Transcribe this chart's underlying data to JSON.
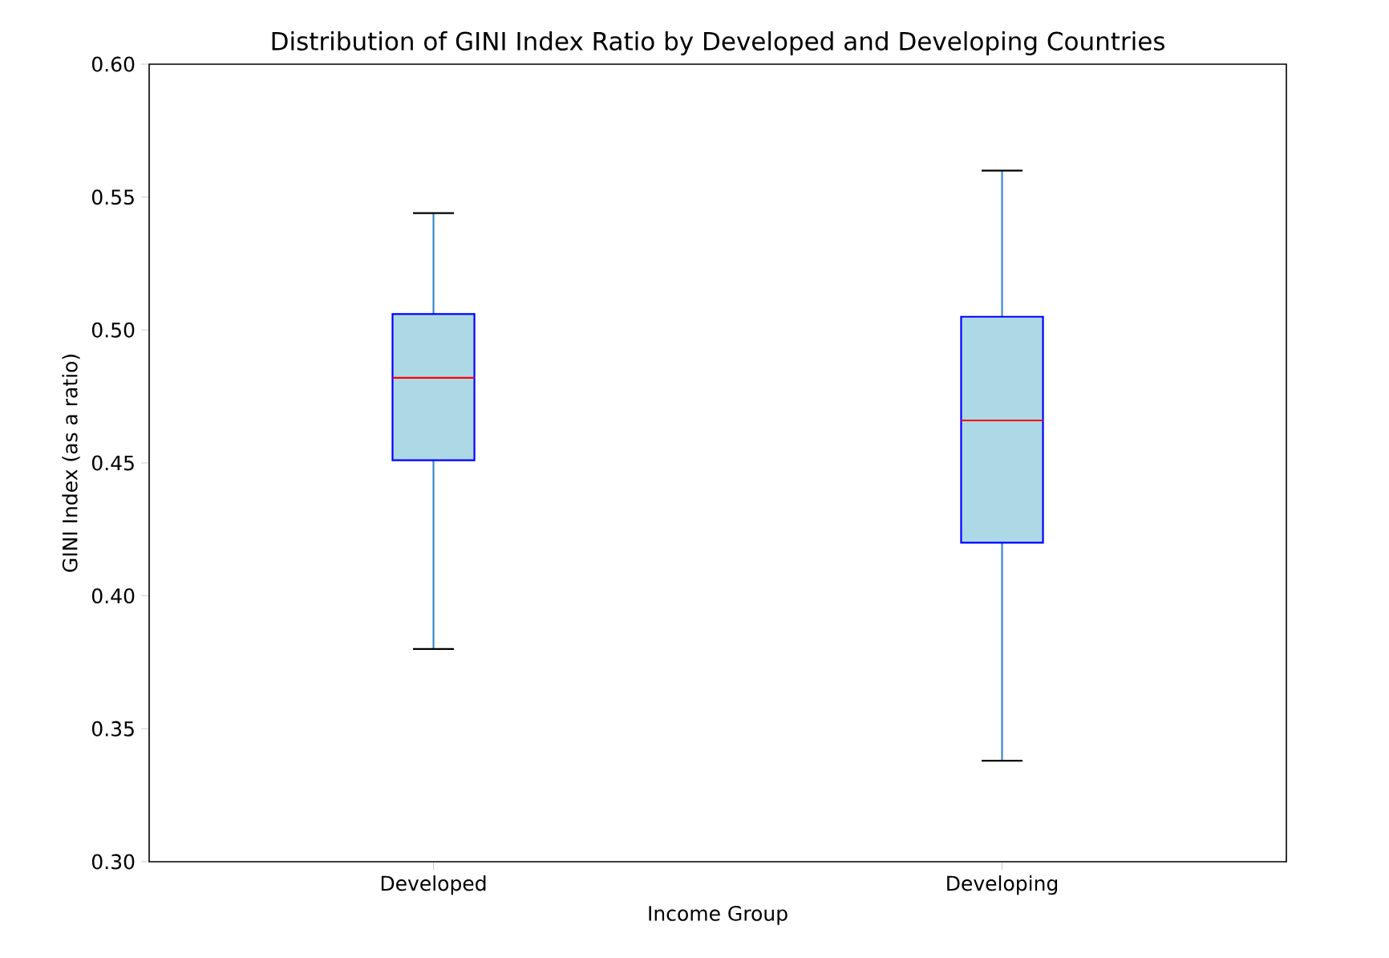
{
  "chart_data": {
    "type": "box",
    "title": "Distribution of GINI Index Ratio by Developed and Developing Countries",
    "xlabel": "Income Group",
    "ylabel": "GINI Index (as a ratio)",
    "categories": [
      "Developed",
      "Developing"
    ],
    "series": [
      {
        "color": "#add8e6",
        "boxes": [
          {
            "low": 0.38,
            "q1": 0.451,
            "median": 0.482,
            "q3": 0.506,
            "high": 0.544
          },
          {
            "low": 0.338,
            "q1": 0.42,
            "median": 0.466,
            "q3": 0.505,
            "high": 0.56
          }
        ]
      }
    ],
    "ylim": [
      0.3,
      0.6
    ],
    "yticks": [
      {
        "value": 0.3,
        "label": "0.30"
      },
      {
        "value": 0.35,
        "label": "0.35"
      },
      {
        "value": 0.4,
        "label": "0.40"
      },
      {
        "value": 0.45,
        "label": "0.45"
      },
      {
        "value": 0.5,
        "label": "0.50"
      },
      {
        "value": 0.55,
        "label": "0.55"
      },
      {
        "value": 0.6,
        "label": "0.60"
      }
    ],
    "grid": false
  }
}
